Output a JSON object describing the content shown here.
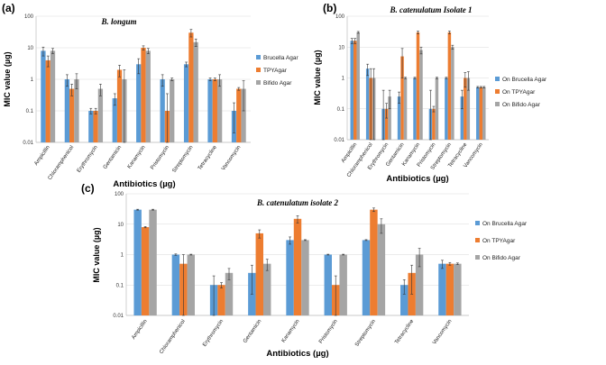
{
  "colors": {
    "brucella": "#5b9bd5",
    "tpy": "#ed7d31",
    "bifido": "#a5a5a5"
  },
  "chart_data": [
    {
      "type": "bar",
      "panel_label": "(a)",
      "title": "B. longum",
      "xlabel": "Antibiotics (µg)",
      "ylabel": "MIC value (µg)",
      "yscale": "log",
      "ylim": [
        0.01,
        100
      ],
      "yticks": [
        "0.01",
        "0.1",
        "1",
        "10",
        "100"
      ],
      "categories": [
        "Ampicillin",
        "Chloramphenicol",
        "Erythromycin",
        "Gentamicin",
        "Kanamycin",
        "Pristomycin",
        "Streptomycin",
        "Tetracycline",
        "Vancomycin"
      ],
      "legend_position": "right",
      "series": [
        {
          "name": "Brucella Agar",
          "values": [
            8,
            1,
            0.1,
            0.25,
            3,
            1,
            3,
            1,
            0.1
          ],
          "error": [
            2.5,
            0.4,
            0.02,
            0.1,
            1.5,
            0.4,
            0.5,
            0.1,
            0.08
          ]
        },
        {
          "name": "TPYAgar",
          "values": [
            4,
            0.5,
            0.1,
            2,
            10,
            0.1,
            30,
            1,
            0.5
          ],
          "error": [
            1.5,
            0.2,
            0.02,
            0.8,
            1.5,
            0.25,
            8,
            0.1,
            0.05
          ]
        },
        {
          "name": "Bifido Agar",
          "values": [
            8,
            1,
            0.5,
            1,
            8,
            1,
            15,
            1,
            0.5
          ],
          "error": [
            1.5,
            0.5,
            0.2,
            1,
            1.5,
            0.1,
            4,
            0.4,
            0.4
          ]
        }
      ]
    },
    {
      "type": "bar",
      "panel_label": "(b)",
      "title": "B. catenulatum  Isolate 1",
      "xlabel": "Antibiotics (µg)",
      "ylabel": "MIC value (µg)",
      "yscale": "log",
      "ylim": [
        0.01,
        100
      ],
      "yticks": [
        "0.01",
        "0.1",
        "1",
        "10",
        "100"
      ],
      "categories": [
        "Ampicillin",
        "Chloramphenicol",
        "Erythromycin",
        "Gentamicin",
        "Kanamycin",
        "Pristomycin",
        "Streptomycin",
        "Tetracycline",
        "Vancomycin"
      ],
      "legend_position": "right",
      "series": [
        {
          "name": "On Brucella Agar",
          "values": [
            16,
            2,
            0.1,
            0.25,
            1,
            0.1,
            1,
            0.25,
            0.5
          ],
          "error": [
            3,
            0.8,
            0.3,
            0.1,
            0.05,
            0.3,
            0.05,
            0.15,
            0.03
          ]
        },
        {
          "name": "On TPYAgar",
          "values": [
            16,
            1,
            0.1,
            5,
            30,
            0.1,
            30,
            1,
            0.5
          ],
          "error": [
            3,
            1,
            0.05,
            4,
            3,
            0.02,
            3,
            0.5,
            0.03
          ]
        },
        {
          "name": "On Bifido Agar",
          "values": [
            30,
            1,
            0.25,
            1,
            8,
            1,
            10,
            1,
            0.5
          ],
          "error": [
            2,
            1,
            0.15,
            0.05,
            2,
            0.05,
            1.5,
            0.6,
            0.03
          ]
        }
      ]
    },
    {
      "type": "bar",
      "panel_label": "(c)",
      "title": "B. catenulatum isolate 2",
      "xlabel": "Antibiotics (µg)",
      "ylabel": "MIC value (µg)",
      "yscale": "log",
      "ylim": [
        0.01,
        100
      ],
      "yticks": [
        "0.01",
        "0.1",
        "1",
        "10",
        "100"
      ],
      "categories": [
        "Ampicillin",
        "Chloramphenicol",
        "Erythromycin",
        "Gentamicin",
        "Kanamycin",
        "Pristomycin",
        "Streptomycin",
        "Tetracycline",
        "Vancomycin"
      ],
      "legend_position": "right",
      "series": [
        {
          "name": "On Brucella Agar",
          "values": [
            30,
            1,
            0.1,
            0.25,
            3,
            1,
            3,
            0.1,
            0.5
          ],
          "error": [
            1,
            0.05,
            0.1,
            0.2,
            0.8,
            0.03,
            0.1,
            0.05,
            0.15
          ]
        },
        {
          "name": "On TPYAgar",
          "values": [
            8,
            0.5,
            0.1,
            5,
            15,
            0.1,
            30,
            0.25,
            0.5
          ],
          "error": [
            0.4,
            0.5,
            0.02,
            1.5,
            4,
            0.1,
            4,
            0.2,
            0.05
          ]
        },
        {
          "name": "On Bifido Agar",
          "values": [
            30,
            1,
            0.25,
            0.5,
            3,
            1,
            10,
            1,
            0.5
          ],
          "error": [
            1,
            0.03,
            0.1,
            0.2,
            0.1,
            0.03,
            5,
            0.6,
            0.03
          ]
        }
      ]
    }
  ]
}
